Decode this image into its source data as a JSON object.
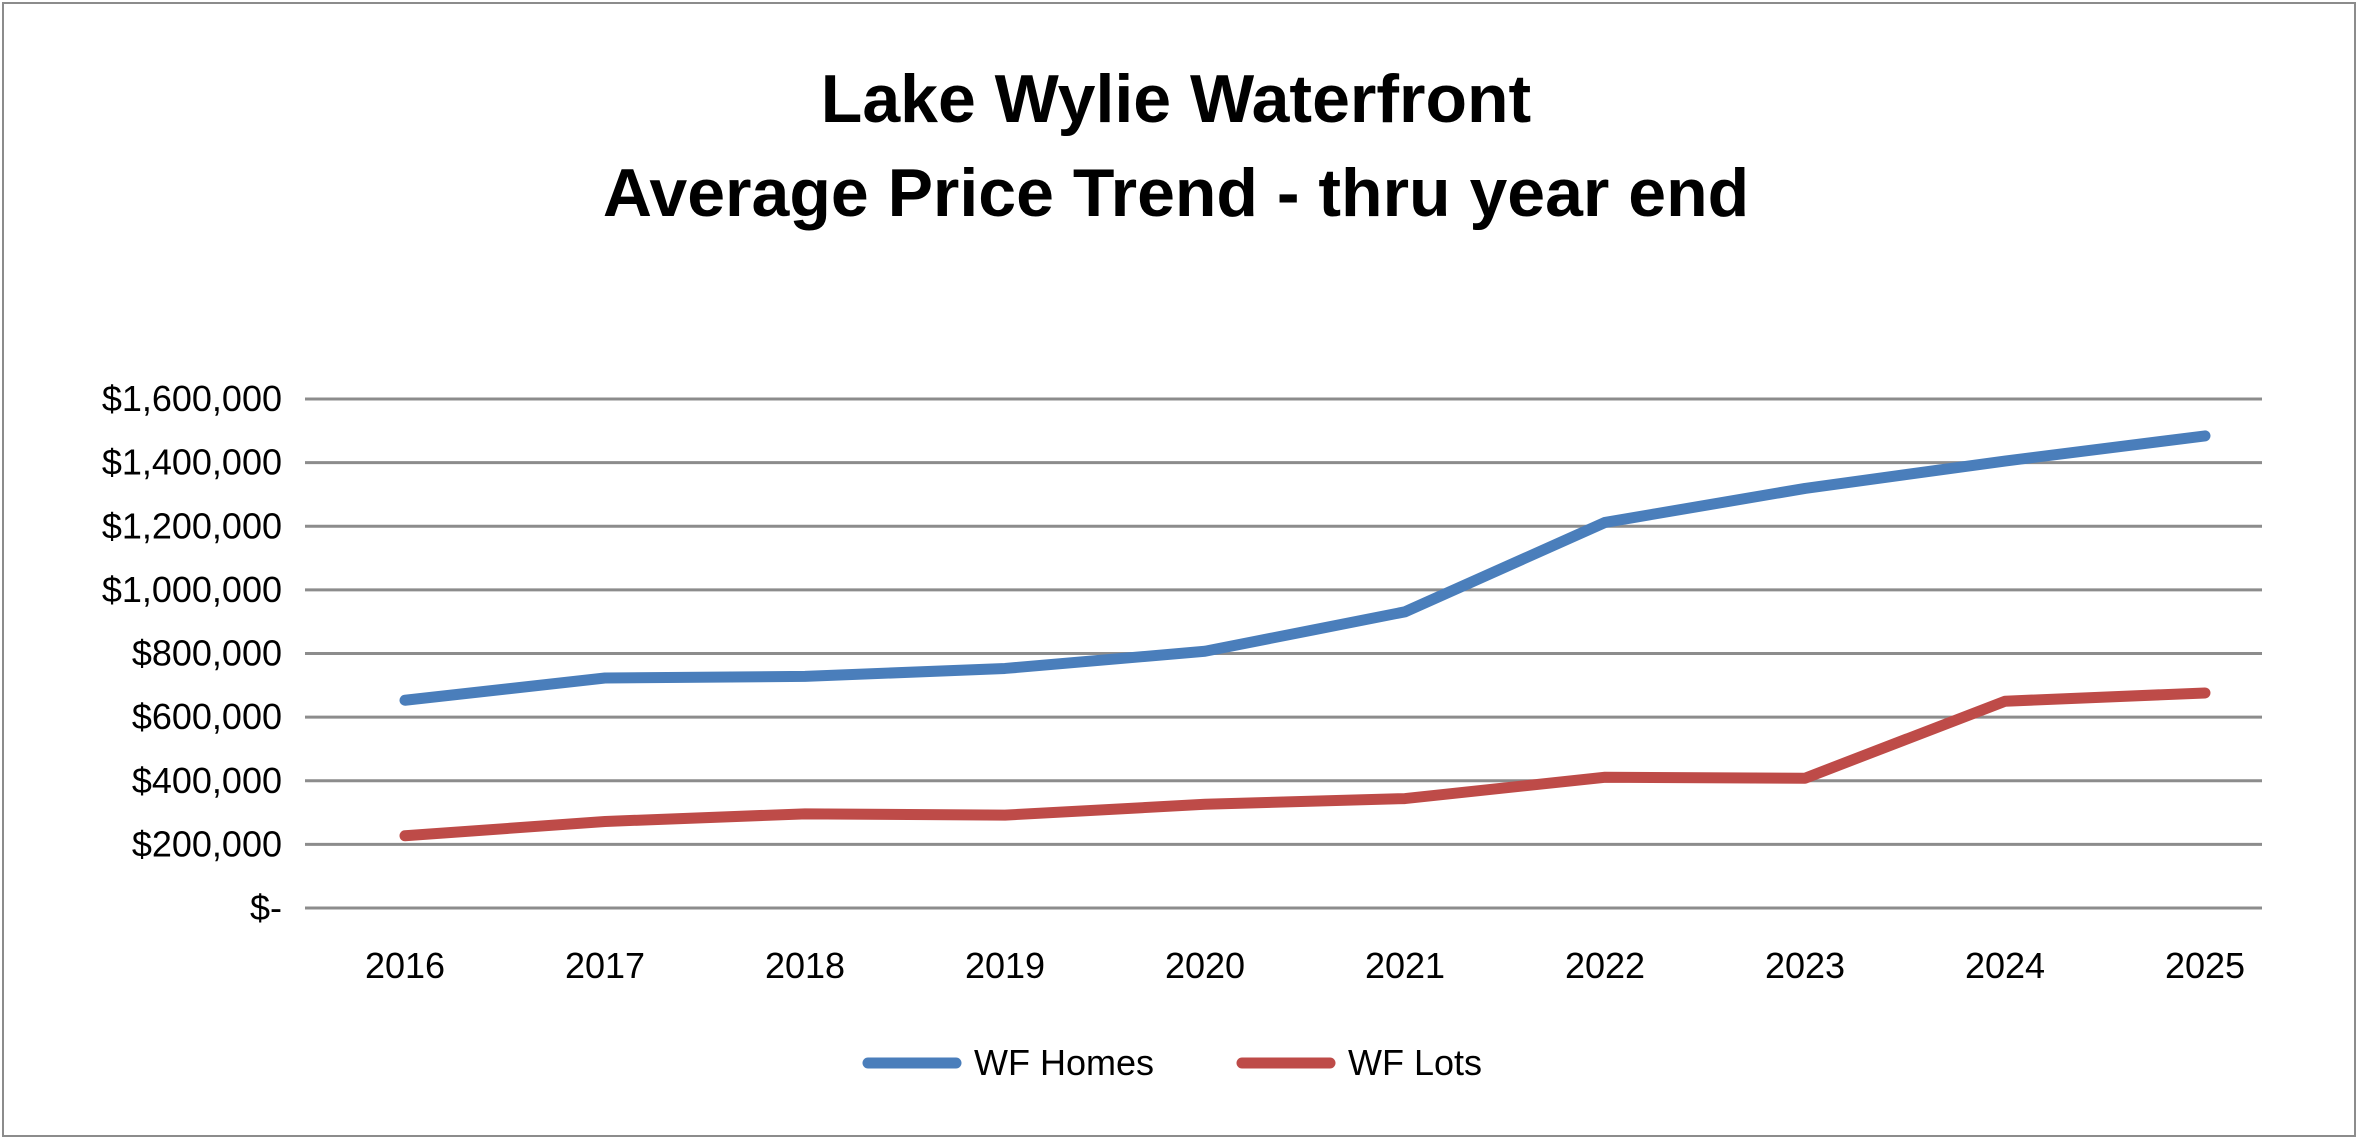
{
  "chart_data": {
    "type": "line",
    "title": [
      "Lake Wylie Waterfront",
      "Average Price Trend - thru year end"
    ],
    "xlabel": "",
    "ylabel": "",
    "categories": [
      "2016",
      "2017",
      "2018",
      "2019",
      "2020",
      "2021",
      "2022",
      "2023",
      "2024",
      "2025"
    ],
    "ylim": [
      0,
      1600000
    ],
    "yticks": [
      0,
      200000,
      400000,
      600000,
      800000,
      1000000,
      1200000,
      1400000,
      1600000
    ],
    "ytick_labels": [
      "$-",
      "$200,000",
      "$400,000",
      "$600,000",
      "$800,000",
      "$1,000,000",
      "$1,200,000",
      "$1,400,000",
      "$1,600,000"
    ],
    "grid": true,
    "legend_position": "bottom",
    "series": [
      {
        "name": "WF Homes",
        "color": "#4a7ebb",
        "values": [
          653000,
          723000,
          728000,
          753000,
          807000,
          931000,
          1212000,
          1319000,
          1405000,
          1484000
        ]
      },
      {
        "name": "WF Lots",
        "color": "#be4b48",
        "values": [
          227000,
          272000,
          296000,
          292000,
          326000,
          344000,
          411000,
          408000,
          650000,
          676000
        ]
      }
    ]
  }
}
